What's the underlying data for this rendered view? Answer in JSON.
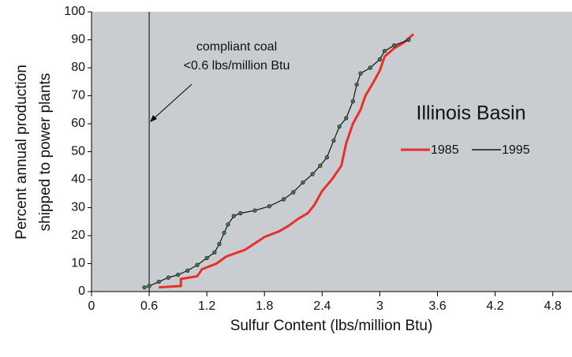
{
  "chart_data": {
    "type": "line",
    "title": "Illinois Basin",
    "x_label": "Sulfur Content (lbs/million Btu)",
    "y_label": [
      "Percent annual production",
      "shipped to power plants"
    ],
    "annotation": [
      "compliant coal",
      "<0.6 lbs/million Btu"
    ],
    "threshold_x": 0.6,
    "xlim": [
      0,
      5
    ],
    "ylim": [
      0,
      100
    ],
    "xticks": [
      0,
      0.6,
      1.2,
      1.8,
      2.4,
      3,
      3.6,
      4.2,
      4.8
    ],
    "yticks": [
      0,
      10,
      20,
      30,
      40,
      50,
      60,
      70,
      80,
      90,
      100
    ],
    "series": [
      {
        "name": "1985",
        "color": "#e8302a",
        "markers": false,
        "x": [
          0.7,
          0.93,
          0.93,
          1.1,
          1.15,
          1.3,
          1.4,
          1.6,
          1.8,
          1.95,
          2.05,
          2.15,
          2.25,
          2.32,
          2.4,
          2.5,
          2.6,
          2.65,
          2.72,
          2.8,
          2.85,
          2.92,
          3.0,
          3.05,
          3.15,
          3.25,
          3.35
        ],
        "values": [
          1.5,
          2,
          4.5,
          5.5,
          8,
          10,
          12.5,
          15,
          19.5,
          21.5,
          23.5,
          26,
          28,
          31,
          36,
          40,
          45,
          53,
          60,
          65,
          70,
          74,
          79,
          84,
          87,
          89,
          92
        ]
      },
      {
        "name": "1995",
        "color": "#111111",
        "marker_color": "#3a7a4a",
        "markers": true,
        "x": [
          0.55,
          0.6,
          0.7,
          0.8,
          0.9,
          1.0,
          1.1,
          1.2,
          1.28,
          1.33,
          1.38,
          1.42,
          1.48,
          1.55,
          1.7,
          1.85,
          2.0,
          2.1,
          2.2,
          2.3,
          2.38,
          2.45,
          2.52,
          2.58,
          2.65,
          2.72,
          2.76,
          2.8,
          2.9,
          3.0,
          3.05,
          3.15,
          3.3
        ],
        "values": [
          1.5,
          2,
          3.5,
          5,
          6,
          7.5,
          9.5,
          12,
          14,
          17,
          21,
          24,
          27,
          28,
          29,
          30.5,
          33,
          35.5,
          39,
          42,
          45,
          48,
          54,
          59,
          62,
          68,
          74,
          78,
          80,
          83,
          86,
          88,
          90
        ]
      }
    ]
  }
}
